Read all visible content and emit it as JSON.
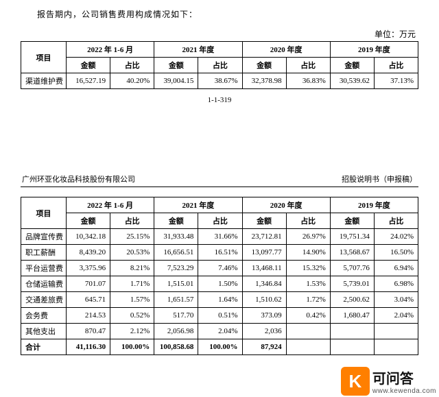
{
  "intro": "报告期内，公司销售费用构成情况如下：",
  "unit": "单位：万元",
  "page_num": "1-1-319",
  "doc_header": {
    "left": "广州环亚化妆品科技股份有限公司",
    "right": "招股说明书（申报稿）"
  },
  "header_labels": {
    "item": "项目",
    "amount": "金额",
    "ratio": "占比"
  },
  "periods": [
    "2022 年 1-6 月",
    "2021 年度",
    "2020 年度",
    "2019 年度"
  ],
  "table1_rows": [
    {
      "label": "渠道维护费",
      "vals": [
        "16,527.19",
        "40.20%",
        "39,004.15",
        "38.67%",
        "32,378.98",
        "36.83%",
        "30,539.62",
        "37.13%"
      ]
    }
  ],
  "table2_rows": [
    {
      "label": "品牌宣传费",
      "vals": [
        "10,342.18",
        "25.15%",
        "31,933.48",
        "31.66%",
        "23,712.81",
        "26.97%",
        "19,751.34",
        "24.02%"
      ]
    },
    {
      "label": "职工薪酬",
      "vals": [
        "8,439.20",
        "20.53%",
        "16,656.51",
        "16.51%",
        "13,097.77",
        "14.90%",
        "13,568.67",
        "16.50%"
      ]
    },
    {
      "label": "平台运营费",
      "vals": [
        "3,375.96",
        "8.21%",
        "7,523.29",
        "7.46%",
        "13,468.11",
        "15.32%",
        "5,707.76",
        "6.94%"
      ]
    },
    {
      "label": "仓储运输费",
      "vals": [
        "701.07",
        "1.71%",
        "1,515.01",
        "1.50%",
        "1,346.84",
        "1.53%",
        "5,739.01",
        "6.98%"
      ]
    },
    {
      "label": "交通差旅费",
      "vals": [
        "645.71",
        "1.57%",
        "1,651.57",
        "1.64%",
        "1,510.62",
        "1.72%",
        "2,500.62",
        "3.04%"
      ]
    },
    {
      "label": "会务费",
      "vals": [
        "214.53",
        "0.52%",
        "517.70",
        "0.51%",
        "373.09",
        "0.42%",
        "1,680.47",
        "2.04%"
      ]
    },
    {
      "label": "其他支出",
      "vals": [
        "870.47",
        "2.12%",
        "2,056.98",
        "2.04%",
        "2,036",
        "",
        "",
        ""
      ]
    },
    {
      "label": "合计",
      "bold": true,
      "vals": [
        "41,116.30",
        "100.00%",
        "100,858.68",
        "100.00%",
        "87,924",
        "",
        "",
        ""
      ]
    }
  ],
  "watermark": {
    "cn": "可问答",
    "url": "www.kewenda.com"
  }
}
